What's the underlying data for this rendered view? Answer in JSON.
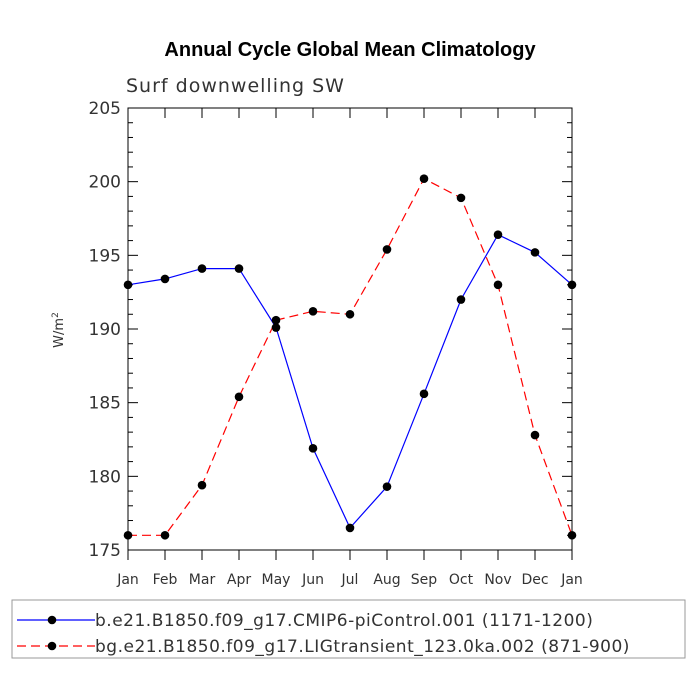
{
  "chart_data": {
    "type": "line",
    "title": "Annual Cycle Global Mean Climatology",
    "subtitle": "Surf downwelling SW",
    "ylabel": "W/m",
    "ylabel_sup": "2",
    "ylim": [
      175,
      205
    ],
    "yticks": [
      175,
      180,
      185,
      190,
      195,
      200,
      205
    ],
    "categories": [
      "Jan",
      "Feb",
      "Mar",
      "Apr",
      "May",
      "Jun",
      "Jul",
      "Aug",
      "Sep",
      "Oct",
      "Nov",
      "Dec",
      "Jan"
    ],
    "series": [
      {
        "name": "b.e21.B1850.f09_g17.CMIP6-piControl.001 (1171-1200)",
        "color": "#0000ff",
        "dash": "solid",
        "values": [
          193.0,
          193.4,
          194.1,
          194.1,
          190.1,
          181.9,
          176.5,
          179.3,
          185.6,
          192.0,
          196.4,
          195.2,
          193.0
        ]
      },
      {
        "name": "bg.e21.B1850.f09_g17.LIGtransient_123.0ka.002 (871-900)",
        "color": "#ff0000",
        "dash": "dashed",
        "values": [
          176.0,
          176.0,
          179.4,
          185.4,
          190.6,
          191.2,
          191.0,
          195.4,
          200.2,
          198.9,
          193.0,
          182.8,
          176.0
        ]
      }
    ],
    "legend_position": "bottom"
  }
}
